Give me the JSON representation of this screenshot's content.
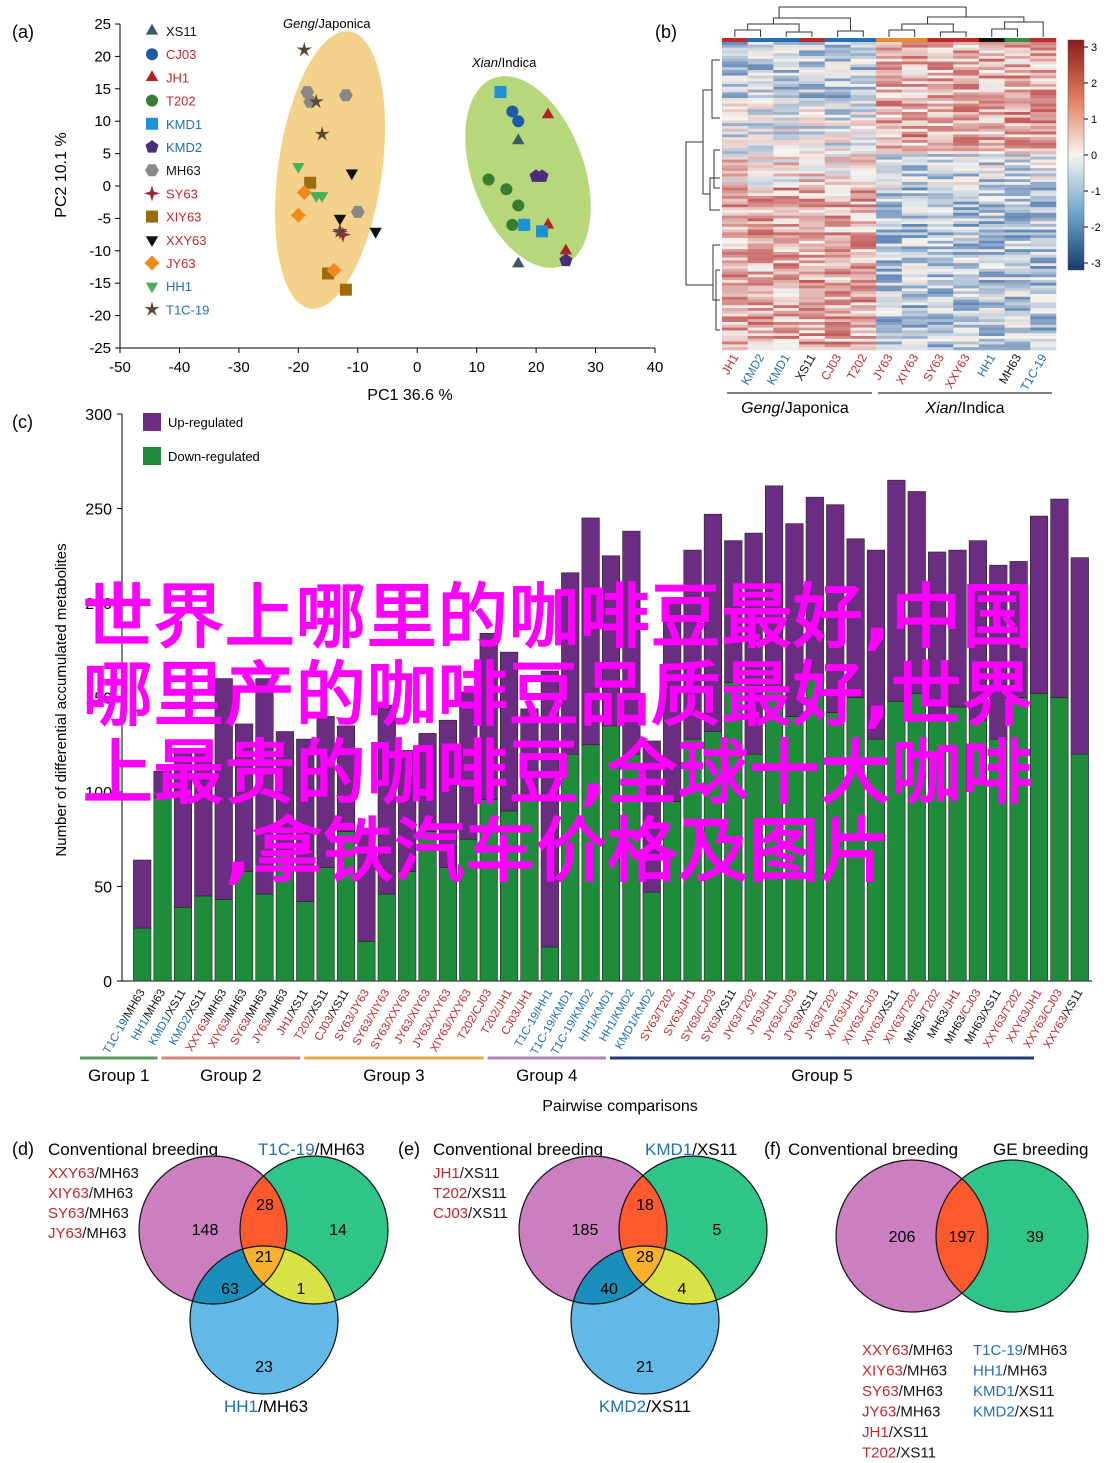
{
  "colors": {
    "purple": "#6b2d82",
    "green": "#1e8c3a",
    "red_label": "#c0282a",
    "blue_label": "#1f6fb4",
    "pca_japonica": "#f5d28b",
    "pca_indica": "#b6d77a",
    "venn_pink": "#cc7fc0",
    "venn_green": "#2fc488",
    "venn_blue": "#62b9e6",
    "venn_red": "#ff5a2d",
    "venn_orange": "#f7b12d",
    "venn_yellow": "#d9e244",
    "venn_teal": "#1b8fbc",
    "overlay": "#ff00ff",
    "group1": "#5b9a5b",
    "group2": "#d08679",
    "group3": "#e2a84a",
    "group4": "#b37fba",
    "group5": "#253c7a"
  },
  "overlay_text": [
    "世界上哪里的咖啡豆最好,中国",
    "哪里产的咖啡豆品质最好,世界",
    "上最贵的咖啡豆,全球十大咖啡",
    ",拿铁汽车价格及图片"
  ],
  "panel_a": {
    "label": "(a)",
    "xlabel": "PC1 36.6 %",
    "ylabel": "PC2 10.1 %",
    "group_japonica": [
      "Geng",
      "/Japonica"
    ],
    "group_indica": [
      "Xian",
      "/Indica"
    ]
  },
  "panel_b": {
    "label": "(b)",
    "group_japonica": [
      "Geng",
      "/Japonica"
    ],
    "group_indica": [
      "Xian",
      "/Indica"
    ]
  },
  "panel_c": {
    "label": "(c)",
    "xlabel": "Pairwise comparisons",
    "ylabel": "Number of differential accumulated metabolites",
    "legend_up": "Up-regulated",
    "legend_down": "Down-regulated"
  },
  "panel_d": {
    "label": "(d)",
    "title_left": "Conventional breeding",
    "title_right_parts": [
      "T1C-19",
      "/MH63"
    ],
    "bottom_parts": [
      "HH1",
      "/MH63"
    ],
    "list": [
      [
        "XXY63",
        "/MH63"
      ],
      [
        "XIY63",
        "/MH63"
      ],
      [
        "SY63",
        "/MH63"
      ],
      [
        "JY63",
        "/MH63"
      ]
    ],
    "regions": {
      "a_only": "148",
      "b_only": "14",
      "c_only": "23",
      "ab": "28",
      "ac": "63",
      "bc": "1",
      "abc": "21"
    }
  },
  "panel_e": {
    "label": "(e)",
    "title_left": "Conventional breeding",
    "title_right_parts": [
      "KMD1",
      "/XS11"
    ],
    "bottom_parts": [
      "KMD2",
      "/XS11"
    ],
    "list": [
      [
        "JH1",
        "/XS11"
      ],
      [
        "T202",
        "/XS11"
      ],
      [
        "CJ03",
        "/XS11"
      ]
    ],
    "regions": {
      "a_only": "185",
      "b_only": "5",
      "c_only": "21",
      "ab": "18",
      "ac": "40",
      "bc": "4",
      "abc": "28"
    }
  },
  "panel_f": {
    "label": "(f)",
    "title_left": "Conventional breeding",
    "title_right": "GE breeding",
    "regions": {
      "left": "206",
      "overlap": "197",
      "right": "39"
    },
    "list_left": [
      [
        "XXY63",
        "/MH63"
      ],
      [
        "XIY63",
        "/MH63"
      ],
      [
        "SY63",
        "/MH63"
      ],
      [
        "JY63",
        "/MH63"
      ],
      [
        "JH1",
        "/XS11"
      ],
      [
        "T202",
        "/XS11"
      ],
      [
        "CJ03",
        "/XS11"
      ]
    ],
    "list_right": [
      [
        "T1C-19",
        "/MH63"
      ],
      [
        "HH1",
        "/MH63"
      ],
      [
        "KMD1",
        "/XS11"
      ],
      [
        "KMD2",
        "/XS11"
      ]
    ]
  },
  "chart_data": [
    {
      "type": "scatter",
      "panel": "a",
      "xlabel": "PC1 36.6 %",
      "ylabel": "PC2 10.1 %",
      "xlim": [
        -50,
        40
      ],
      "ylim": [
        -25,
        25
      ],
      "xticks": [
        -50,
        -40,
        -30,
        -20,
        -10,
        0,
        10,
        20,
        30,
        40
      ],
      "yticks": [
        -25,
        -20,
        -15,
        -10,
        -5,
        0,
        5,
        10,
        15,
        20,
        25
      ],
      "legend_position": "top-left",
      "series": [
        {
          "name": "XS11",
          "color": "#3d5866",
          "marker": "triangle",
          "points": [
            [
              17,
              7
            ],
            [
              18,
              -6
            ],
            [
              17,
              -12
            ]
          ]
        },
        {
          "name": "CJ03",
          "color": "#1f5aa8",
          "marker": "circle",
          "points": [
            [
              14,
              14.5
            ],
            [
              16,
              11.5
            ],
            [
              17,
              10
            ]
          ]
        },
        {
          "name": "JH1",
          "color": "#b22222",
          "marker": "triangle",
          "points": [
            [
              22,
              11
            ],
            [
              22,
              -6
            ],
            [
              25,
              -10
            ]
          ]
        },
        {
          "name": "T202",
          "color": "#3a7d2c",
          "marker": "circle",
          "points": [
            [
              12,
              1
            ],
            [
              15,
              -0.5
            ],
            [
              16,
              -6
            ],
            [
              17,
              -3
            ]
          ]
        },
        {
          "name": "KMD1",
          "color": "#1e90d6",
          "marker": "square",
          "points": [
            [
              14,
              14.5
            ],
            [
              18,
              -6
            ],
            [
              21,
              -7
            ]
          ]
        },
        {
          "name": "KMD2",
          "color": "#4a2e7a",
          "marker": "pentagon",
          "points": [
            [
              20,
              1.5
            ],
            [
              21,
              1.5
            ],
            [
              25,
              -11.5
            ]
          ]
        },
        {
          "name": "MH63",
          "color": "#888888",
          "marker": "hexagon",
          "points": [
            [
              -18.5,
              14.5
            ],
            [
              -12,
              14
            ],
            [
              -10,
              -4
            ],
            [
              -18,
              13
            ]
          ]
        },
        {
          "name": "SY63",
          "color": "#a0263c",
          "marker": "star4",
          "points": [
            [
              -13,
              -7
            ],
            [
              -12.5,
              -7.5
            ]
          ]
        },
        {
          "name": "XIY63",
          "color": "#9c6b10",
          "marker": "square",
          "points": [
            [
              -18,
              0.5
            ],
            [
              -15,
              -13.5
            ],
            [
              -12,
              -16
            ]
          ]
        },
        {
          "name": "XXY63",
          "color": "#111111",
          "marker": "triangle_down",
          "points": [
            [
              -11,
              2
            ],
            [
              -13,
              -5
            ],
            [
              -7,
              -7
            ]
          ]
        },
        {
          "name": "JY63",
          "color": "#f08a1c",
          "marker": "diamond",
          "points": [
            [
              -19,
              -1
            ],
            [
              -20,
              -4.5
            ],
            [
              -14,
              -13
            ]
          ]
        },
        {
          "name": "HH1",
          "color": "#4cb05a",
          "marker": "triangle_down",
          "points": [
            [
              -20,
              3
            ],
            [
              -17,
              -1.5
            ],
            [
              -16,
              -1.5
            ]
          ]
        },
        {
          "name": "T1C-19",
          "color": "#5b4636",
          "marker": "star",
          "points": [
            [
              -19,
              21
            ],
            [
              -17,
              13
            ],
            [
              -16,
              8
            ],
            [
              -13,
              -7
            ]
          ]
        }
      ]
    },
    {
      "type": "heatmap",
      "panel": "b",
      "columns": [
        "JH1",
        "KMD2",
        "KMD1",
        "XS11",
        "CJ03",
        "T202",
        "JY63",
        "XIY63",
        "SY63",
        "XXY63",
        "HH1",
        "MH63",
        "T1C-19"
      ],
      "column_colors": [
        "red",
        "blue",
        "blue",
        "black",
        "red",
        "red",
        "red",
        "red",
        "red",
        "red",
        "blue",
        "black",
        "blue"
      ],
      "colorbar_ticks": [
        3,
        2,
        1,
        0,
        -1,
        -2,
        -3
      ],
      "colorbar_range": [
        -3,
        3
      ]
    },
    {
      "type": "bar",
      "panel": "c",
      "stacked": true,
      "ylabel": "Number of differential accumulated metabolites",
      "xlabel": "Pairwise comparisons",
      "ylim": [
        0,
        300
      ],
      "yticks": [
        0,
        50,
        100,
        150,
        200,
        250,
        300
      ],
      "categories": [
        "T1C-19/MH63",
        "HH1/MH63",
        "KMD1/XS11",
        "KMD2/XS11",
        "XXY63/MH63",
        "XIY63/MH63",
        "SY63/MH63",
        "JY63/MH63",
        "JH1/XS11",
        "T202/XS11",
        "CJ03/XS11",
        "SY63/JY63",
        "SY63/XIY63",
        "SY63/XXY63",
        "JY63/XIY63",
        "JY63/XXY63",
        "XIY63/XXY63",
        "T202/CJ03",
        "T202/JH1",
        "CJ03/JH1",
        "T1C-19/HH1",
        "T1C-19/KMD1",
        "T1C-19/KMD2",
        "HH1/KMD1",
        "HH1/KMD2",
        "KMD1/KMD2",
        "SY63/T202",
        "SY63/JH1",
        "SY63/CJ03",
        "SY63/XS11",
        "JY63/T202",
        "JY63/JH1",
        "JY63/CJ03",
        "JY63/XS11",
        "JY63/T202",
        "XIY63/JH1",
        "XIY63/CJ03",
        "XIY63/XS11",
        "XIY63/T202",
        "MH63/T202",
        "MH63/JH1",
        "MH63/CJ03",
        "MH63/XS11",
        "XXY63/T202",
        "XXY63/JH1",
        "XXY63/CJ03",
        "XXY63/XS11"
      ],
      "category_groups": [
        [
          "blue",
          "black"
        ],
        [
          "blue",
          "black"
        ],
        [
          "blue",
          "black"
        ],
        [
          "blue",
          "black"
        ],
        [
          "red",
          "black"
        ],
        [
          "red",
          "black"
        ],
        [
          "red",
          "black"
        ],
        [
          "red",
          "black"
        ],
        [
          "red",
          "black"
        ],
        [
          "red",
          "black"
        ],
        [
          "red",
          "black"
        ],
        [
          "red",
          "red"
        ],
        [
          "red",
          "red"
        ],
        [
          "red",
          "red"
        ],
        [
          "red",
          "red"
        ],
        [
          "red",
          "red"
        ],
        [
          "red",
          "red"
        ],
        [
          "red",
          "red"
        ],
        [
          "red",
          "red"
        ],
        [
          "red",
          "red"
        ],
        [
          "blue",
          "blue"
        ],
        [
          "blue",
          "blue"
        ],
        [
          "blue",
          "blue"
        ],
        [
          "blue",
          "blue"
        ],
        [
          "blue",
          "blue"
        ],
        [
          "blue",
          "blue"
        ],
        [
          "red",
          "red"
        ],
        [
          "red",
          "red"
        ],
        [
          "red",
          "red"
        ],
        [
          "red",
          "black"
        ],
        [
          "red",
          "red"
        ],
        [
          "red",
          "red"
        ],
        [
          "red",
          "red"
        ],
        [
          "red",
          "black"
        ],
        [
          "red",
          "red"
        ],
        [
          "red",
          "red"
        ],
        [
          "red",
          "red"
        ],
        [
          "red",
          "black"
        ],
        [
          "red",
          "red"
        ],
        [
          "black",
          "red"
        ],
        [
          "black",
          "red"
        ],
        [
          "black",
          "red"
        ],
        [
          "black",
          "black"
        ],
        [
          "red",
          "red"
        ],
        [
          "red",
          "red"
        ],
        [
          "red",
          "red"
        ],
        [
          "red",
          "black"
        ]
      ],
      "series": [
        {
          "name": "Down-regulated",
          "values": [
            28,
            97,
            39,
            45,
            43,
            58,
            46,
            68,
            42,
            60,
            79,
            21,
            46,
            58,
            79,
            60,
            75,
            96,
            90,
            98,
            18,
            120,
            125,
            135,
            120,
            47,
            95,
            128,
            132,
            158,
            120,
            155,
            140,
            160,
            142,
            150,
            128,
            148,
            152,
            138,
            145,
            138,
            128,
            150,
            152,
            150,
            120
          ]
        },
        {
          "name": "Up-regulated",
          "values": [
            36,
            14,
            82,
            78,
            117,
            78,
            114,
            64,
            86,
            80,
            56,
            59,
            100,
            64,
            52,
            78,
            78,
            88,
            84,
            46,
            146,
            96,
            120,
            90,
            118,
            80,
            108,
            100,
            115,
            75,
            117,
            107,
            102,
            96,
            110,
            84,
            100,
            117,
            107,
            89,
            83,
            95,
            92,
            72,
            94,
            105,
            104
          ]
        }
      ],
      "groups": [
        {
          "name": "Group 1",
          "range": [
            0,
            3
          ]
        },
        {
          "name": "Group 2",
          "range": [
            4,
            10
          ]
        },
        {
          "name": "Group 3",
          "range": [
            11,
            19
          ]
        },
        {
          "name": "Group 4",
          "range": [
            20,
            25
          ]
        },
        {
          "name": "Group 5",
          "range": [
            26,
            46
          ]
        }
      ]
    }
  ]
}
